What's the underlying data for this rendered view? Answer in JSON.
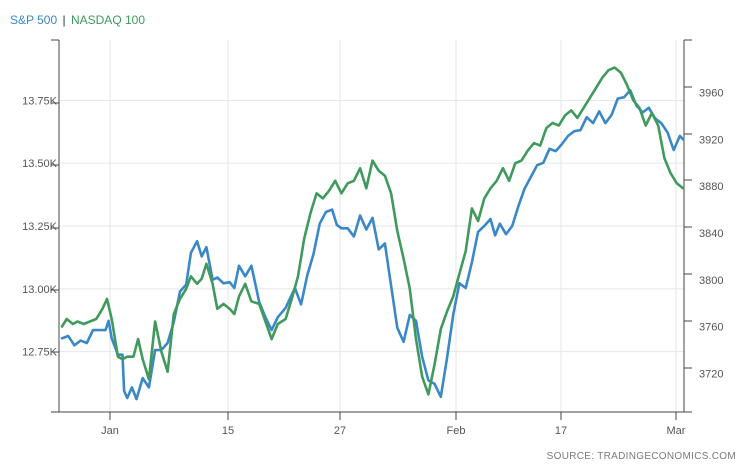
{
  "legend": {
    "sp500_label": "S&P 500",
    "separator": "|",
    "nasdaq_label": "NASDAQ 100"
  },
  "source": "SOURCE: TRADINGECONOMICS.COM",
  "colors": {
    "sp500": "#3a88c8",
    "nasdaq": "#3f9a5c",
    "grid": "#e6e6e6",
    "axis": "#444444"
  },
  "chart_data": {
    "type": "line",
    "title": "",
    "x_axis": {
      "ticks": [
        "Jan",
        "15",
        "27",
        "Feb",
        "17",
        "Mar"
      ],
      "range": [
        0,
        40
      ]
    },
    "y_left": {
      "ticks": [
        "12.75K",
        "13.00K",
        "13.25K",
        "13.50K",
        "13.75K"
      ],
      "tick_values": [
        12750,
        13000,
        13250,
        13500,
        13750
      ],
      "range": [
        12510,
        13990
      ]
    },
    "y_right": {
      "ticks": [
        "3720",
        "3760",
        "3800",
        "3840",
        "3880",
        "3920",
        "3960"
      ],
      "tick_values": [
        3720,
        3760,
        3800,
        3840,
        3880,
        3920,
        3960
      ],
      "range": [
        3687,
        4005
      ]
    },
    "series": [
      {
        "name": "S&P 500",
        "axis": "right",
        "points": [
          [
            0,
            3750
          ],
          [
            0.4,
            3752
          ],
          [
            0.8,
            3744
          ],
          [
            1.2,
            3748
          ],
          [
            1.6,
            3746
          ],
          [
            2.0,
            3757
          ],
          [
            2.4,
            3757
          ],
          [
            2.8,
            3757
          ],
          [
            3.0,
            3765
          ],
          [
            3.2,
            3750
          ],
          [
            3.6,
            3736
          ],
          [
            3.9,
            3736
          ],
          [
            4.0,
            3705
          ],
          [
            4.2,
            3699
          ],
          [
            4.5,
            3708
          ],
          [
            4.8,
            3698
          ],
          [
            5.2,
            3716
          ],
          [
            5.6,
            3708
          ],
          [
            6.0,
            3740
          ],
          [
            6.4,
            3740
          ],
          [
            6.8,
            3746
          ],
          [
            7.2,
            3764
          ],
          [
            7.6,
            3790
          ],
          [
            8.0,
            3796
          ],
          [
            8.3,
            3823
          ],
          [
            8.7,
            3833
          ],
          [
            9.0,
            3820
          ],
          [
            9.3,
            3828
          ],
          [
            9.7,
            3800
          ],
          [
            10.0,
            3802
          ],
          [
            10.4,
            3797
          ],
          [
            10.8,
            3798
          ],
          [
            11.1,
            3793
          ],
          [
            11.4,
            3812
          ],
          [
            11.8,
            3803
          ],
          [
            12.2,
            3812
          ],
          [
            12.7,
            3781
          ],
          [
            13.1,
            3768
          ],
          [
            13.5,
            3757
          ],
          [
            13.9,
            3768
          ],
          [
            14.4,
            3776
          ],
          [
            15.0,
            3793
          ],
          [
            15.4,
            3779
          ],
          [
            15.8,
            3804
          ],
          [
            16.2,
            3822
          ],
          [
            16.6,
            3848
          ],
          [
            17.0,
            3858
          ],
          [
            17.4,
            3860
          ],
          [
            17.7,
            3847
          ],
          [
            18.0,
            3844
          ],
          [
            18.4,
            3844
          ],
          [
            18.8,
            3837
          ],
          [
            19.2,
            3855
          ],
          [
            19.6,
            3843
          ],
          [
            20.0,
            3853
          ],
          [
            20.4,
            3826
          ],
          [
            20.8,
            3831
          ],
          [
            21.2,
            3795
          ],
          [
            21.6,
            3759
          ],
          [
            22.0,
            3747
          ],
          [
            22.4,
            3770
          ],
          [
            22.8,
            3765
          ],
          [
            23.2,
            3734
          ],
          [
            23.6,
            3714
          ],
          [
            24.0,
            3711
          ],
          [
            24.4,
            3700
          ],
          [
            24.8,
            3733
          ],
          [
            25.2,
            3770
          ],
          [
            25.6,
            3797
          ],
          [
            26.0,
            3793
          ],
          [
            26.4,
            3815
          ],
          [
            26.8,
            3841
          ],
          [
            27.2,
            3846
          ],
          [
            27.6,
            3852
          ],
          [
            27.9,
            3838
          ],
          [
            28.2,
            3848
          ],
          [
            28.6,
            3839
          ],
          [
            29.0,
            3846
          ],
          [
            29.4,
            3863
          ],
          [
            29.8,
            3878
          ],
          [
            30.2,
            3888
          ],
          [
            30.6,
            3898
          ],
          [
            31.0,
            3900
          ],
          [
            31.4,
            3912
          ],
          [
            31.8,
            3910
          ],
          [
            32.2,
            3916
          ],
          [
            32.6,
            3923
          ],
          [
            33.0,
            3927
          ],
          [
            33.4,
            3928
          ],
          [
            33.8,
            3939
          ],
          [
            34.2,
            3934
          ],
          [
            34.6,
            3944
          ],
          [
            35.0,
            3934
          ],
          [
            35.4,
            3941
          ],
          [
            35.8,
            3955
          ],
          [
            36.2,
            3956
          ],
          [
            36.6,
            3962
          ],
          [
            37.0,
            3949
          ],
          [
            37.4,
            3943
          ],
          [
            37.8,
            3947
          ],
          [
            38.2,
            3938
          ],
          [
            38.6,
            3934
          ],
          [
            39.0,
            3926
          ],
          [
            39.4,
            3911
          ],
          [
            39.8,
            3923
          ],
          [
            40.0,
            3920
          ]
        ]
      },
      {
        "name": "NASDAQ 100",
        "axis": "left",
        "points": [
          [
            0,
            12850
          ],
          [
            0.3,
            12880
          ],
          [
            0.7,
            12860
          ],
          [
            1.0,
            12870
          ],
          [
            1.4,
            12860
          ],
          [
            1.8,
            12870
          ],
          [
            2.2,
            12880
          ],
          [
            2.6,
            12920
          ],
          [
            2.9,
            12960
          ],
          [
            3.2,
            12880
          ],
          [
            3.6,
            12730
          ],
          [
            3.9,
            12720
          ],
          [
            4.2,
            12730
          ],
          [
            4.6,
            12730
          ],
          [
            4.9,
            12800
          ],
          [
            5.2,
            12720
          ],
          [
            5.6,
            12640
          ],
          [
            6.0,
            12870
          ],
          [
            6.4,
            12750
          ],
          [
            6.8,
            12670
          ],
          [
            7.2,
            12900
          ],
          [
            7.6,
            12960
          ],
          [
            8.0,
            13000
          ],
          [
            8.3,
            13050
          ],
          [
            8.7,
            13020
          ],
          [
            9.0,
            13040
          ],
          [
            9.3,
            13100
          ],
          [
            9.7,
            13020
          ],
          [
            10.0,
            12920
          ],
          [
            10.4,
            12940
          ],
          [
            10.8,
            12920
          ],
          [
            11.1,
            12900
          ],
          [
            11.4,
            12970
          ],
          [
            11.8,
            13020
          ],
          [
            12.2,
            12950
          ],
          [
            12.7,
            12940
          ],
          [
            13.1,
            12870
          ],
          [
            13.5,
            12800
          ],
          [
            13.9,
            12860
          ],
          [
            14.4,
            12880
          ],
          [
            14.8,
            12960
          ],
          [
            15.2,
            13050
          ],
          [
            15.6,
            13200
          ],
          [
            16.0,
            13300
          ],
          [
            16.4,
            13380
          ],
          [
            16.8,
            13360
          ],
          [
            17.2,
            13390
          ],
          [
            17.6,
            13430
          ],
          [
            18.0,
            13380
          ],
          [
            18.4,
            13420
          ],
          [
            18.8,
            13430
          ],
          [
            19.2,
            13480
          ],
          [
            19.6,
            13400
          ],
          [
            20.0,
            13510
          ],
          [
            20.4,
            13470
          ],
          [
            20.8,
            13450
          ],
          [
            21.2,
            13380
          ],
          [
            21.6,
            13230
          ],
          [
            22.0,
            13120
          ],
          [
            22.4,
            13000
          ],
          [
            22.8,
            12800
          ],
          [
            23.2,
            12650
          ],
          [
            23.6,
            12580
          ],
          [
            24.0,
            12700
          ],
          [
            24.4,
            12840
          ],
          [
            24.8,
            12910
          ],
          [
            25.2,
            12970
          ],
          [
            25.6,
            13060
          ],
          [
            26.0,
            13150
          ],
          [
            26.4,
            13320
          ],
          [
            26.8,
            13270
          ],
          [
            27.2,
            13360
          ],
          [
            27.6,
            13400
          ],
          [
            28.0,
            13430
          ],
          [
            28.4,
            13480
          ],
          [
            28.8,
            13430
          ],
          [
            29.2,
            13500
          ],
          [
            29.6,
            13510
          ],
          [
            30.0,
            13550
          ],
          [
            30.4,
            13580
          ],
          [
            30.8,
            13570
          ],
          [
            31.2,
            13640
          ],
          [
            31.6,
            13660
          ],
          [
            32.0,
            13650
          ],
          [
            32.4,
            13690
          ],
          [
            32.8,
            13710
          ],
          [
            33.2,
            13680
          ],
          [
            33.6,
            13720
          ],
          [
            34.0,
            13760
          ],
          [
            34.4,
            13800
          ],
          [
            34.8,
            13840
          ],
          [
            35.2,
            13870
          ],
          [
            35.6,
            13880
          ],
          [
            36.0,
            13860
          ],
          [
            36.4,
            13810
          ],
          [
            36.8,
            13750
          ],
          [
            37.2,
            13720
          ],
          [
            37.6,
            13650
          ],
          [
            38.0,
            13700
          ],
          [
            38.4,
            13650
          ],
          [
            38.8,
            13520
          ],
          [
            39.2,
            13460
          ],
          [
            39.6,
            13420
          ],
          [
            40.0,
            13400
          ]
        ]
      }
    ],
    "grid": true,
    "legend_position": "top-left"
  }
}
